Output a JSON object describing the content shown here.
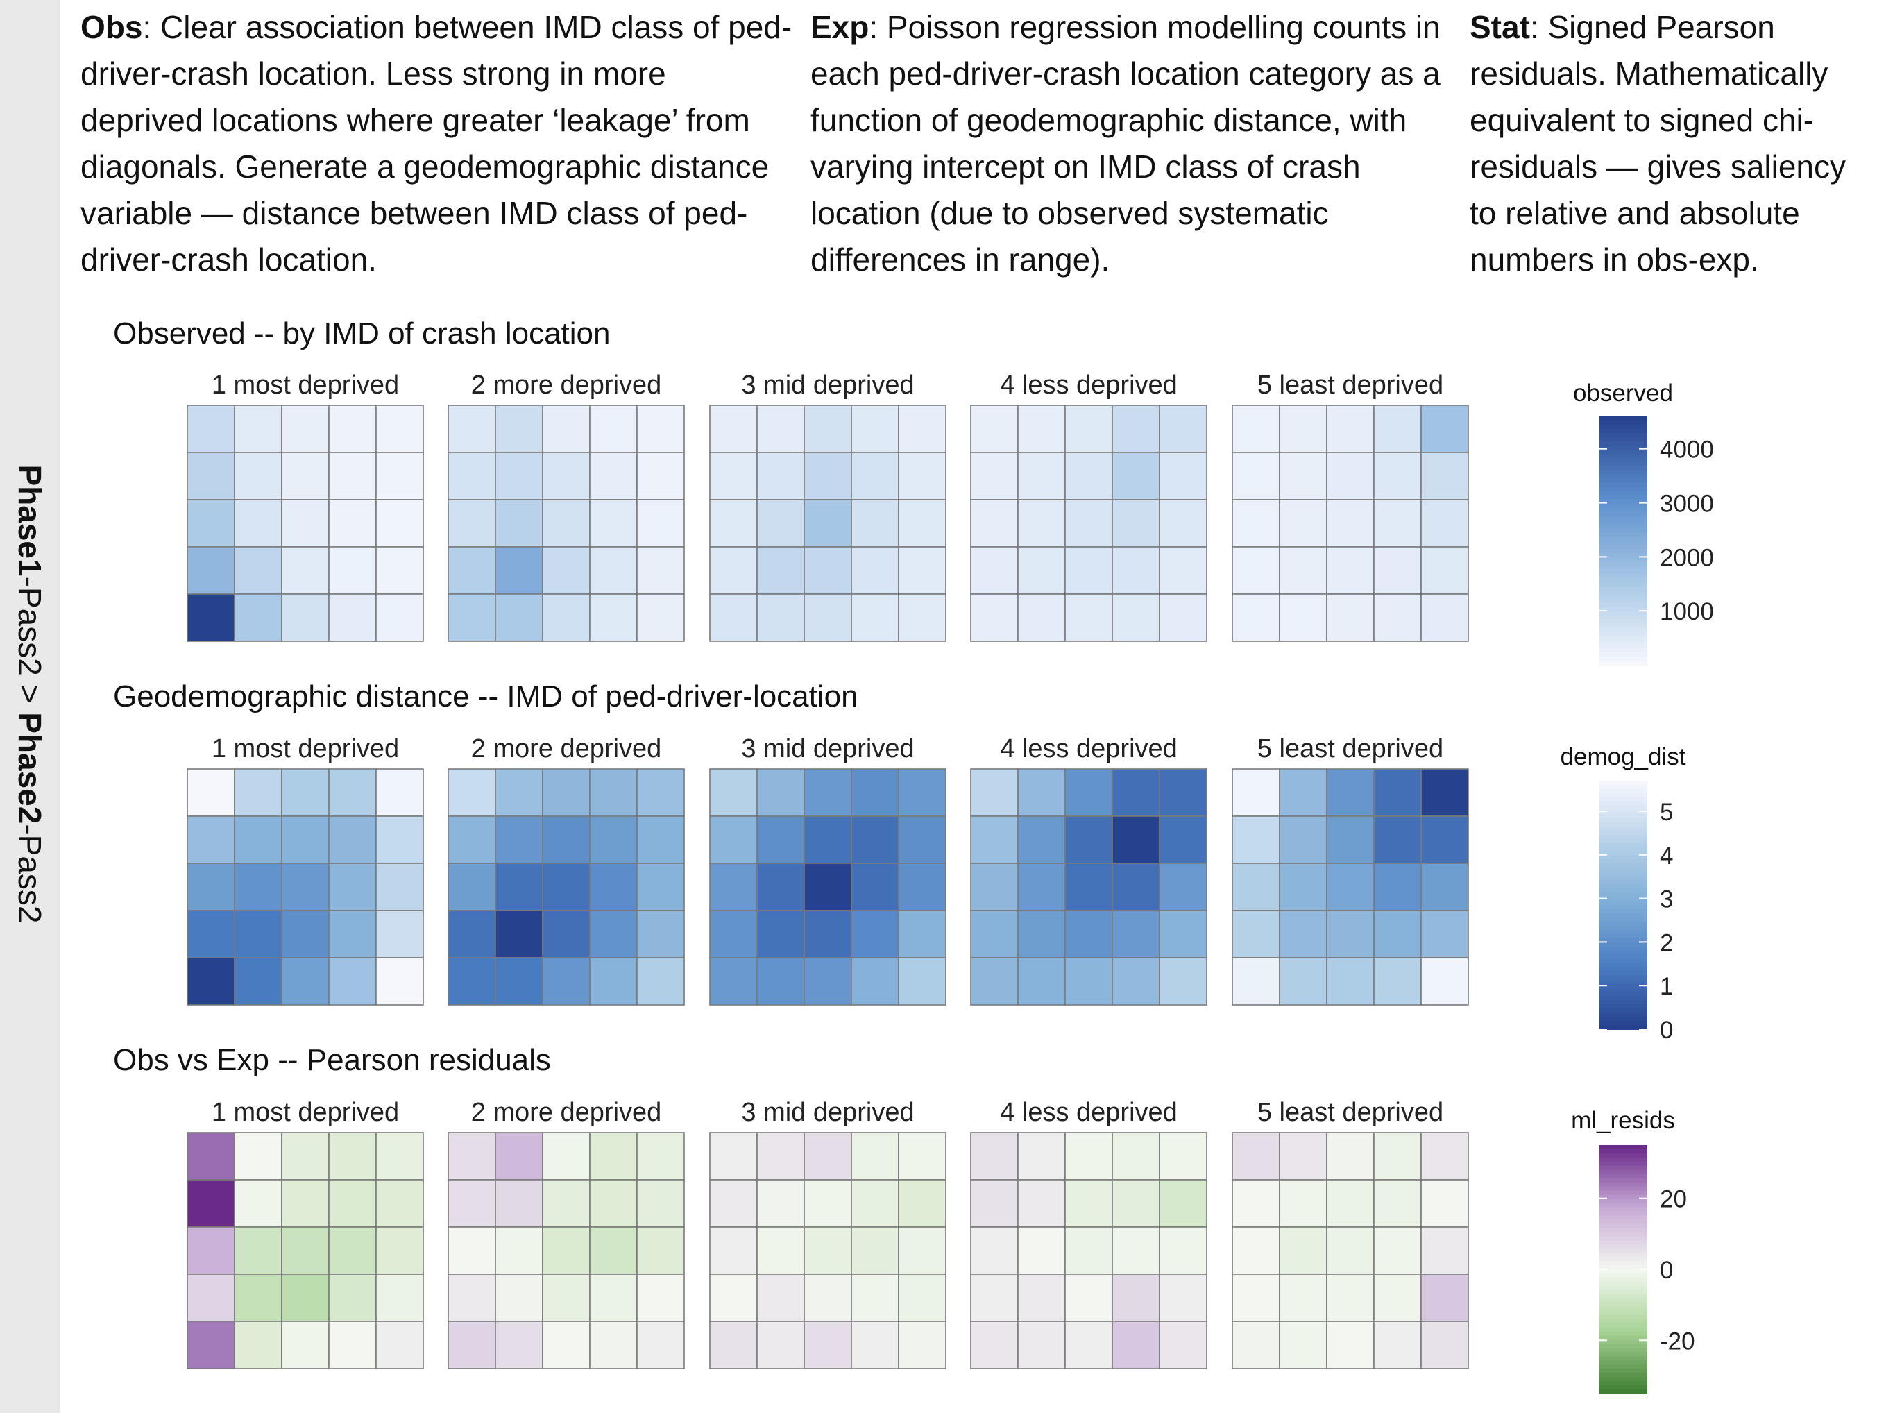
{
  "sidebar": {
    "part1": "Phase1",
    "part2": "-Pass2 > ",
    "part3": "Phase2",
    "part4": "-Pass2"
  },
  "header": {
    "obs": {
      "label": "Obs",
      "text": ": Clear association between IMD class of ped-driver-crash location. Less strong in more deprived locations where greater ‘leakage’ from diagonals. Generate a geodemographic distance variable — distance between IMD class of ped-driver-crash location."
    },
    "exp": {
      "label": "Exp",
      "text": ": Poisson regression modelling counts in each ped-driver-crash location category as a function of geodemographic distance, with varying intercept on IMD class of crash location (due to observed systematic differences in range)."
    },
    "stat": {
      "label": "Stat",
      "text": ": Signed Pearson residuals. Mathematically equivalent to signed chi-residuals — gives saliency to relative and absolute numbers in obs-exp."
    }
  },
  "chart_data": [
    {
      "type": "heatmap",
      "title": "Observed -- by IMD of crash location",
      "facets": [
        "1 most deprived",
        "2 more deprived",
        "3 mid deprived",
        "4 less deprived",
        "5 least deprived"
      ],
      "legend": {
        "title": "observed",
        "ticks": [
          1000,
          2000,
          3000,
          4000
        ],
        "range": [
          0,
          4600
        ],
        "colors": [
          "#f5f7fd",
          "#a8c8e6",
          "#5d90cd",
          "#26428f"
        ]
      },
      "values": [
        [
          [
            900,
            400,
            250,
            150,
            120
          ],
          [
            1150,
            500,
            250,
            150,
            120
          ],
          [
            1450,
            600,
            300,
            150,
            100
          ],
          [
            2000,
            1100,
            400,
            200,
            120
          ],
          [
            4600,
            1500,
            700,
            350,
            200
          ]
        ],
        [
          [
            500,
            800,
            300,
            200,
            150
          ],
          [
            650,
            900,
            600,
            300,
            150
          ],
          [
            750,
            1200,
            700,
            400,
            200
          ],
          [
            1300,
            2300,
            900,
            500,
            250
          ],
          [
            1400,
            1500,
            750,
            450,
            250
          ]
        ],
        [
          [
            300,
            350,
            700,
            450,
            300
          ],
          [
            400,
            600,
            1000,
            650,
            400
          ],
          [
            450,
            800,
            1600,
            700,
            450
          ],
          [
            500,
            1000,
            1000,
            600,
            400
          ],
          [
            600,
            700,
            700,
            450,
            400
          ]
        ],
        [
          [
            250,
            300,
            450,
            850,
            750
          ],
          [
            300,
            400,
            600,
            1200,
            550
          ],
          [
            300,
            400,
            600,
            800,
            500
          ],
          [
            350,
            450,
            550,
            600,
            400
          ],
          [
            300,
            350,
            400,
            450,
            350
          ]
        ],
        [
          [
            200,
            250,
            300,
            600,
            1650
          ],
          [
            200,
            250,
            350,
            500,
            800
          ],
          [
            200,
            250,
            300,
            400,
            600
          ],
          [
            200,
            250,
            300,
            350,
            450
          ],
          [
            200,
            200,
            250,
            300,
            350
          ]
        ]
      ]
    },
    {
      "type": "heatmap",
      "title": "Geodemographic distance -- IMD of ped-driver-location",
      "facets": [
        "1 most deprived",
        "2 more deprived",
        "3 mid deprived",
        "4 less deprived",
        "5 least deprived"
      ],
      "legend": {
        "title": "demog_dist",
        "ticks": [
          0,
          1,
          2,
          3,
          4,
          5
        ],
        "range": [
          0,
          5.7
        ],
        "colors": [
          "#26428f",
          "#4a7cc2",
          "#7eacd7",
          "#b4d0e8",
          "#f5f7fd"
        ]
      },
      "values": [
        [
          [
            5.7,
            4.5,
            4.1,
            4.2,
            5.6
          ],
          [
            3.5,
            3.1,
            3.1,
            3.3,
            4.6
          ],
          [
            2.4,
            2.1,
            2.3,
            3.2,
            4.5
          ],
          [
            1.4,
            1.4,
            2.0,
            3.1,
            4.8
          ],
          [
            0.0,
            1.4,
            2.5,
            3.7,
            5.7
          ]
        ],
        [
          [
            4.7,
            3.6,
            3.3,
            3.3,
            3.6
          ],
          [
            3.2,
            2.2,
            2.0,
            2.4,
            3.1
          ],
          [
            2.4,
            1.2,
            1.2,
            1.9,
            3.1
          ],
          [
            1.2,
            0.0,
            1.1,
            2.1,
            3.3
          ],
          [
            1.4,
            1.4,
            2.2,
            3.1,
            4.2
          ]
        ],
        [
          [
            4.3,
            3.3,
            2.3,
            2.0,
            2.3
          ],
          [
            3.2,
            2.0,
            1.2,
            1.1,
            2.0
          ],
          [
            2.3,
            1.1,
            0.0,
            1.1,
            2.0
          ],
          [
            2.1,
            1.2,
            1.1,
            1.8,
            3.1
          ],
          [
            2.3,
            2.1,
            2.2,
            3.0,
            4.1
          ]
        ],
        [
          [
            4.5,
            3.4,
            2.1,
            1.1,
            1.1
          ],
          [
            3.6,
            2.3,
            1.1,
            0.0,
            1.2
          ],
          [
            3.3,
            2.3,
            1.2,
            1.1,
            2.3
          ],
          [
            3.1,
            2.4,
            2.1,
            2.3,
            3.1
          ],
          [
            3.3,
            3.1,
            3.2,
            3.4,
            4.3
          ]
        ],
        [
          [
            5.6,
            3.4,
            2.2,
            1.1,
            0.0
          ],
          [
            4.6,
            3.3,
            2.4,
            1.1,
            1.1
          ],
          [
            4.2,
            3.2,
            2.7,
            2.1,
            2.4
          ],
          [
            4.3,
            3.4,
            3.3,
            3.1,
            3.4
          ],
          [
            5.5,
            4.2,
            4.1,
            4.3,
            5.6
          ]
        ]
      ]
    },
    {
      "type": "heatmap",
      "title": "Obs vs Exp -- Pearson residuals",
      "facets": [
        "1 most deprived",
        "2 more deprived",
        "3 mid deprived",
        "4 less deprived",
        "5 least deprived"
      ],
      "legend": {
        "title": "ml_resids",
        "ticks": [
          -20,
          0,
          20
        ],
        "range": [
          -35,
          35
        ],
        "colors": [
          "#3f7f33",
          "#a9d497",
          "#f4f7f1",
          "#c7abd6",
          "#6a2a8a"
        ]
      },
      "values": [
        [
          [
            26,
            0,
            -4,
            -5,
            -3
          ],
          [
            35,
            -1,
            -5,
            -6,
            -5
          ],
          [
            16,
            -9,
            -10,
            -9,
            -5
          ],
          [
            8,
            -11,
            -13,
            -7,
            -2
          ],
          [
            24,
            -5,
            -1,
            0,
            2
          ]
        ],
        [
          [
            6,
            14,
            -1,
            -5,
            -3
          ],
          [
            6,
            7,
            -4,
            -5,
            -4
          ],
          [
            0,
            -1,
            -6,
            -8,
            -5
          ],
          [
            3,
            1,
            -3,
            -2,
            0
          ],
          [
            8,
            6,
            0,
            1,
            2
          ]
        ],
        [
          [
            2,
            4,
            6,
            -2,
            -1
          ],
          [
            3,
            1,
            -1,
            -3,
            -5
          ],
          [
            2,
            -1,
            -3,
            -4,
            -2
          ],
          [
            0,
            3,
            1,
            -1,
            -2
          ],
          [
            5,
            3,
            6,
            2,
            1
          ]
        ],
        [
          [
            5,
            2,
            -1,
            -2,
            -1
          ],
          [
            5,
            3,
            -3,
            -4,
            -7
          ],
          [
            2,
            0,
            -2,
            -1,
            -1
          ],
          [
            2,
            3,
            0,
            7,
            2
          ],
          [
            4,
            3,
            2,
            11,
            4
          ]
        ],
        [
          [
            6,
            4,
            1,
            -2,
            4
          ],
          [
            0,
            -1,
            -2,
            -2,
            0
          ],
          [
            0,
            -3,
            -2,
            -1,
            3
          ],
          [
            0,
            -1,
            -1,
            -1,
            11
          ],
          [
            1,
            -1,
            0,
            2,
            5
          ]
        ]
      ]
    }
  ]
}
